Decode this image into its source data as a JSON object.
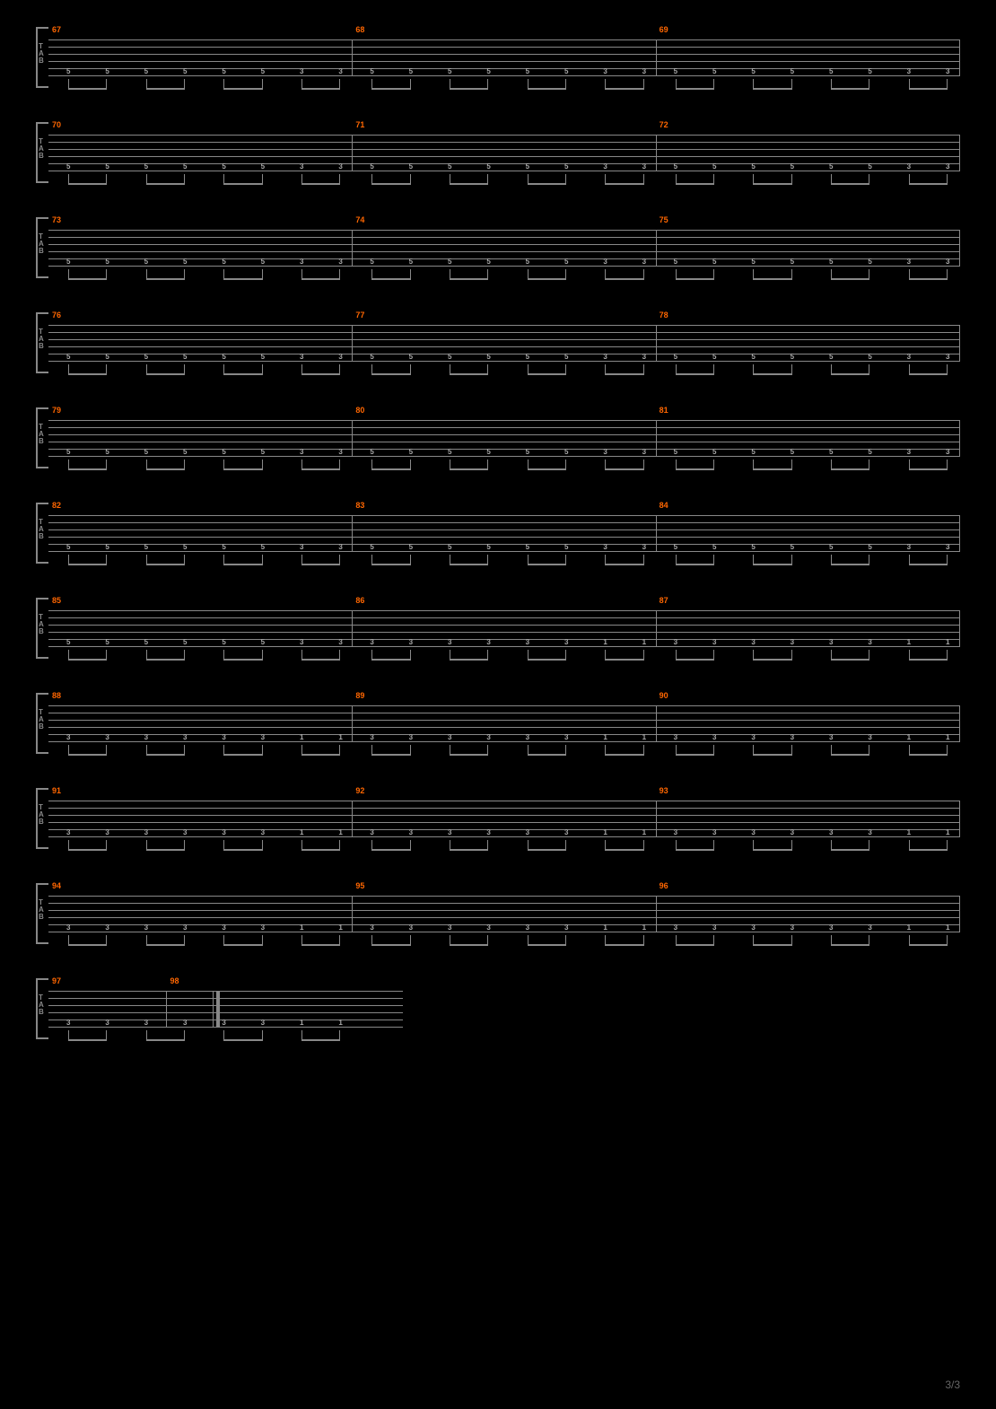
{
  "page_number": "3/3",
  "tab_label": [
    "T",
    "A",
    "B"
  ],
  "colors": {
    "background": "#000000",
    "staff_line": "#888888",
    "measure_number": "#ff6600",
    "note_text": "#aaaaaa",
    "page_number": "#666666"
  },
  "staff": {
    "line_count": 6,
    "line_spacing": 8
  },
  "rows": [
    {
      "measures": [
        {
          "number": "67",
          "notes": [
            "5",
            "5",
            "5",
            "5",
            "5",
            "5",
            "3",
            "3"
          ],
          "start_pct": 0
        },
        {
          "number": "68",
          "notes": [
            "5",
            "5",
            "5",
            "5",
            "5",
            "5",
            "3",
            "3"
          ],
          "start_pct": 33.3
        },
        {
          "number": "69",
          "notes": [
            "5",
            "5",
            "5",
            "5",
            "5",
            "5",
            "3",
            "3"
          ],
          "start_pct": 66.6
        }
      ]
    },
    {
      "measures": [
        {
          "number": "70",
          "notes": [
            "5",
            "5",
            "5",
            "5",
            "5",
            "5",
            "3",
            "3"
          ],
          "start_pct": 0
        },
        {
          "number": "71",
          "notes": [
            "5",
            "5",
            "5",
            "5",
            "5",
            "5",
            "3",
            "3"
          ],
          "start_pct": 33.3
        },
        {
          "number": "72",
          "notes": [
            "5",
            "5",
            "5",
            "5",
            "5",
            "5",
            "3",
            "3"
          ],
          "start_pct": 66.6
        }
      ]
    },
    {
      "measures": [
        {
          "number": "73",
          "notes": [
            "5",
            "5",
            "5",
            "5",
            "5",
            "5",
            "3",
            "3"
          ],
          "start_pct": 0
        },
        {
          "number": "74",
          "notes": [
            "5",
            "5",
            "5",
            "5",
            "5",
            "5",
            "3",
            "3"
          ],
          "start_pct": 33.3
        },
        {
          "number": "75",
          "notes": [
            "5",
            "5",
            "5",
            "5",
            "5",
            "5",
            "3",
            "3"
          ],
          "start_pct": 66.6
        }
      ]
    },
    {
      "measures": [
        {
          "number": "76",
          "notes": [
            "5",
            "5",
            "5",
            "5",
            "5",
            "5",
            "3",
            "3"
          ],
          "start_pct": 0
        },
        {
          "number": "77",
          "notes": [
            "5",
            "5",
            "5",
            "5",
            "5",
            "5",
            "3",
            "3"
          ],
          "start_pct": 33.3
        },
        {
          "number": "78",
          "notes": [
            "5",
            "5",
            "5",
            "5",
            "5",
            "5",
            "3",
            "3"
          ],
          "start_pct": 66.6
        }
      ]
    },
    {
      "measures": [
        {
          "number": "79",
          "notes": [
            "5",
            "5",
            "5",
            "5",
            "5",
            "5",
            "3",
            "3"
          ],
          "start_pct": 0
        },
        {
          "number": "80",
          "notes": [
            "5",
            "5",
            "5",
            "5",
            "5",
            "5",
            "3",
            "3"
          ],
          "start_pct": 33.3
        },
        {
          "number": "81",
          "notes": [
            "5",
            "5",
            "5",
            "5",
            "5",
            "5",
            "3",
            "3"
          ],
          "start_pct": 66.6
        }
      ]
    },
    {
      "measures": [
        {
          "number": "82",
          "notes": [
            "5",
            "5",
            "5",
            "5",
            "5",
            "5",
            "3",
            "3"
          ],
          "start_pct": 0
        },
        {
          "number": "83",
          "notes": [
            "5",
            "5",
            "5",
            "5",
            "5",
            "5",
            "3",
            "3"
          ],
          "start_pct": 33.3
        },
        {
          "number": "84",
          "notes": [
            "5",
            "5",
            "5",
            "5",
            "5",
            "5",
            "3",
            "3"
          ],
          "start_pct": 66.6
        }
      ]
    },
    {
      "measures": [
        {
          "number": "85",
          "notes": [
            "5",
            "5",
            "5",
            "5",
            "5",
            "5",
            "3",
            "3"
          ],
          "start_pct": 0
        },
        {
          "number": "86",
          "notes": [
            "3",
            "3",
            "3",
            "3",
            "3",
            "3",
            "1",
            "1"
          ],
          "start_pct": 33.3
        },
        {
          "number": "87",
          "notes": [
            "3",
            "3",
            "3",
            "3",
            "3",
            "3",
            "1",
            "1"
          ],
          "start_pct": 66.6
        }
      ]
    },
    {
      "measures": [
        {
          "number": "88",
          "notes": [
            "3",
            "3",
            "3",
            "3",
            "3",
            "3",
            "1",
            "1"
          ],
          "start_pct": 0
        },
        {
          "number": "89",
          "notes": [
            "3",
            "3",
            "3",
            "3",
            "3",
            "3",
            "1",
            "1"
          ],
          "start_pct": 33.3
        },
        {
          "number": "90",
          "notes": [
            "3",
            "3",
            "3",
            "3",
            "3",
            "3",
            "1",
            "1"
          ],
          "start_pct": 66.6
        }
      ]
    },
    {
      "measures": [
        {
          "number": "91",
          "notes": [
            "3",
            "3",
            "3",
            "3",
            "3",
            "3",
            "1",
            "1"
          ],
          "start_pct": 0
        },
        {
          "number": "92",
          "notes": [
            "3",
            "3",
            "3",
            "3",
            "3",
            "3",
            "1",
            "1"
          ],
          "start_pct": 33.3
        },
        {
          "number": "93",
          "notes": [
            "3",
            "3",
            "3",
            "3",
            "3",
            "3",
            "1",
            "1"
          ],
          "start_pct": 66.6
        }
      ]
    },
    {
      "measures": [
        {
          "number": "94",
          "notes": [
            "3",
            "3",
            "3",
            "3",
            "3",
            "3",
            "1",
            "1"
          ],
          "start_pct": 0
        },
        {
          "number": "95",
          "notes": [
            "3",
            "3",
            "3",
            "3",
            "3",
            "3",
            "1",
            "1"
          ],
          "start_pct": 33.3
        },
        {
          "number": "96",
          "notes": [
            "3",
            "3",
            "3",
            "3",
            "3",
            "3",
            "1",
            "1"
          ],
          "start_pct": 66.6
        }
      ]
    },
    {
      "short": true,
      "measures": [
        {
          "number": "97",
          "notes": [
            "3",
            "3",
            "3",
            "3",
            "3",
            "3",
            "1",
            "1"
          ],
          "start_pct": 0
        },
        {
          "number": "98",
          "notes": [],
          "start_pct": 33.3,
          "final": true
        }
      ]
    }
  ]
}
